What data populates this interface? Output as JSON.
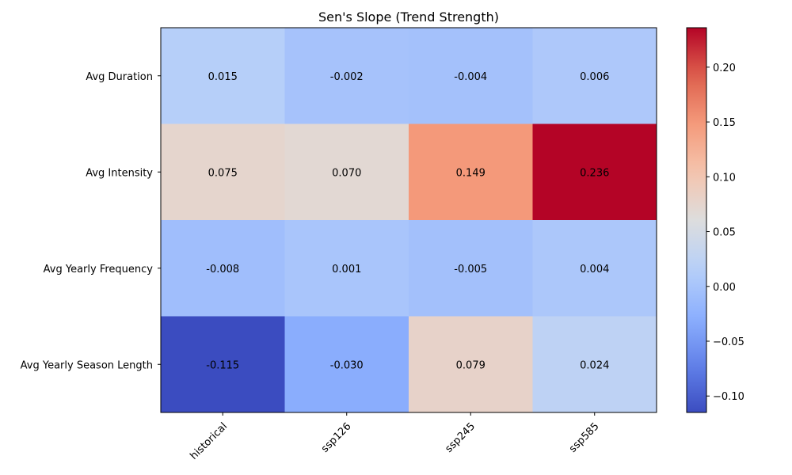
{
  "chart_data": {
    "type": "heatmap",
    "title": "Sen's Slope (Trend Strength)",
    "x_categories": [
      "historical",
      "ssp126",
      "ssp245",
      "ssp585"
    ],
    "y_categories": [
      "Avg Duration",
      "Avg Intensity",
      "Avg Yearly Frequency",
      "Avg Yearly Season Length"
    ],
    "values": [
      [
        0.015,
        -0.002,
        -0.004,
        0.006
      ],
      [
        0.075,
        0.07,
        0.149,
        0.236
      ],
      [
        -0.008,
        0.001,
        -0.005,
        0.004
      ],
      [
        -0.115,
        -0.03,
        0.079,
        0.024
      ]
    ],
    "cell_labels": [
      [
        "0.015",
        "-0.002",
        "-0.004",
        "0.006"
      ],
      [
        "0.075",
        "0.070",
        "0.149",
        "0.236"
      ],
      [
        "-0.008",
        "0.001",
        "-0.005",
        "0.004"
      ],
      [
        "-0.115",
        "-0.030",
        "0.079",
        "0.024"
      ]
    ],
    "colormap": "coolwarm",
    "vmin": -0.115,
    "vmax": 0.236,
    "colorbar_ticks": [
      -0.1,
      -0.05,
      0.0,
      0.05,
      0.1,
      0.15,
      0.2
    ],
    "colorbar_tick_labels": [
      "−0.10",
      "−0.05",
      "0.00",
      "0.05",
      "0.10",
      "0.15",
      "0.20"
    ]
  }
}
